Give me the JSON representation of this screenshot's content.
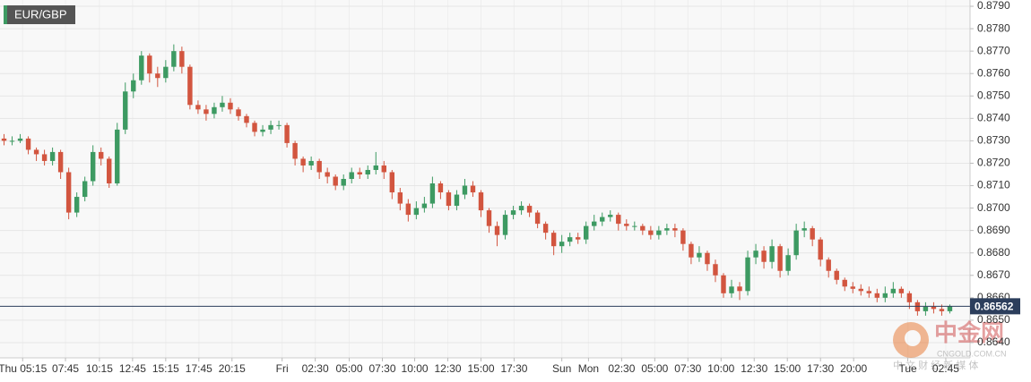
{
  "chart_data": {
    "type": "candlestick",
    "symbol": "EUR/GBP",
    "up_color": "#3d9a62",
    "down_color": "#d2553f",
    "grid": true,
    "last_price": 0.86562,
    "last_price_color": "#2c3e5c",
    "xlim": [
      0,
      120
    ],
    "ylim": [
      0.86332,
      0.87928
    ],
    "yticks": [
      {
        "value": 0.864,
        "label": "0.8640"
      },
      {
        "value": 0.865,
        "label": "0.8650"
      },
      {
        "value": 0.866,
        "label": "0.8660"
      },
      {
        "value": 0.867,
        "label": "0.8670"
      },
      {
        "value": 0.868,
        "label": "0.8680"
      },
      {
        "value": 0.869,
        "label": "0.8690"
      },
      {
        "value": 0.87,
        "label": "0.8700"
      },
      {
        "value": 0.871,
        "label": "0.8710"
      },
      {
        "value": 0.872,
        "label": "0.8720"
      },
      {
        "value": 0.873,
        "label": "0.8730"
      },
      {
        "value": 0.874,
        "label": "0.8740"
      },
      {
        "value": 0.875,
        "label": "0.8750"
      },
      {
        "value": 0.876,
        "label": "0.8760"
      },
      {
        "value": 0.877,
        "label": "0.8770"
      },
      {
        "value": 0.878,
        "label": "0.8780"
      },
      {
        "value": 0.879,
        "label": "0.8790"
      }
    ],
    "xticks": [
      {
        "value": 2.8,
        "label": "Thu 05:15"
      },
      {
        "value": 8.1,
        "label": "07:45"
      },
      {
        "value": 12.3,
        "label": "10:15"
      },
      {
        "value": 16.4,
        "label": "12:45"
      },
      {
        "value": 20.5,
        "label": "15:15"
      },
      {
        "value": 24.6,
        "label": "17:45"
      },
      {
        "value": 28.7,
        "label": "20:15"
      },
      {
        "value": 34.9,
        "label": "Fri"
      },
      {
        "value": 39.0,
        "label": "02:30"
      },
      {
        "value": 43.2,
        "label": "05:00"
      },
      {
        "value": 47.3,
        "label": "07:30"
      },
      {
        "value": 51.3,
        "label": "10:00"
      },
      {
        "value": 55.4,
        "label": "12:30"
      },
      {
        "value": 59.5,
        "label": "15:00"
      },
      {
        "value": 63.6,
        "label": "17:30"
      },
      {
        "value": 69.5,
        "label": "Sun"
      },
      {
        "value": 72.8,
        "label": "Mon"
      },
      {
        "value": 76.9,
        "label": "02:30"
      },
      {
        "value": 81.0,
        "label": "05:00"
      },
      {
        "value": 85.1,
        "label": "07:30"
      },
      {
        "value": 89.2,
        "label": "10:00"
      },
      {
        "value": 93.3,
        "label": "12:30"
      },
      {
        "value": 97.4,
        "label": "15:00"
      },
      {
        "value": 101.5,
        "label": "17:30"
      },
      {
        "value": 105.6,
        "label": "20:00"
      },
      {
        "value": 112.3,
        "label": "Tue"
      },
      {
        "value": 117.0,
        "label": "02:45"
      }
    ],
    "open": [
      0.8731,
      0.873,
      0.873,
      0.8731,
      0.8726,
      0.8724,
      0.8721,
      0.8725,
      0.8716,
      0.8698,
      0.8705,
      0.8712,
      0.8725,
      0.8722,
      0.8711,
      0.8735,
      0.8752,
      0.8757,
      0.8768,
      0.876,
      0.8758,
      0.8763,
      0.877,
      0.8763,
      0.8746,
      0.8744,
      0.8742,
      0.8745,
      0.8747,
      0.8744,
      0.8741,
      0.8738,
      0.8734,
      0.8735,
      0.8737,
      0.8737,
      0.8729,
      0.8722,
      0.8719,
      0.8721,
      0.8716,
      0.8714,
      0.871,
      0.8713,
      0.8716,
      0.8715,
      0.8717,
      0.8719,
      0.8716,
      0.8707,
      0.8702,
      0.8697,
      0.87,
      0.8702,
      0.8711,
      0.8707,
      0.8701,
      0.8706,
      0.871,
      0.8707,
      0.8699,
      0.8692,
      0.8688,
      0.8697,
      0.8699,
      0.8701,
      0.8698,
      0.8693,
      0.8689,
      0.8683,
      0.8685,
      0.8687,
      0.8686,
      0.8692,
      0.8694,
      0.8696,
      0.8697,
      0.8693,
      0.8692,
      0.8692,
      0.869,
      0.8688,
      0.869,
      0.8691,
      0.869,
      0.8684,
      0.8678,
      0.868,
      0.8675,
      0.867,
      0.8662,
      0.8665,
      0.8663,
      0.8678,
      0.8681,
      0.8676,
      0.8683,
      0.8672,
      0.8679,
      0.869,
      0.8691,
      0.8686,
      0.8677,
      0.8672,
      0.8668,
      0.8665,
      0.8664,
      0.8663,
      0.8662,
      0.866,
      0.8662,
      0.8664,
      0.8662,
      0.8658,
      0.8654,
      0.8656,
      0.8655,
      0.8654
    ],
    "high": [
      0.8733,
      0.8732,
      0.8733,
      0.8732,
      0.8727,
      0.8726,
      0.8727,
      0.8726,
      0.8718,
      0.8707,
      0.8714,
      0.8728,
      0.8727,
      0.8723,
      0.8738,
      0.8756,
      0.876,
      0.877,
      0.8769,
      0.8763,
      0.8766,
      0.8773,
      0.8772,
      0.8764,
      0.8748,
      0.8746,
      0.8747,
      0.875,
      0.8749,
      0.8745,
      0.8742,
      0.8739,
      0.8737,
      0.8739,
      0.8739,
      0.8738,
      0.873,
      0.8723,
      0.8723,
      0.8722,
      0.8718,
      0.8715,
      0.8715,
      0.8718,
      0.8718,
      0.8719,
      0.8725,
      0.8721,
      0.8717,
      0.8709,
      0.8704,
      0.8703,
      0.8705,
      0.8714,
      0.8712,
      0.8708,
      0.8708,
      0.8713,
      0.8712,
      0.8708,
      0.87,
      0.8694,
      0.8699,
      0.8701,
      0.8703,
      0.8702,
      0.8699,
      0.8694,
      0.869,
      0.8688,
      0.8689,
      0.8689,
      0.8694,
      0.8697,
      0.8698,
      0.8699,
      0.8698,
      0.8695,
      0.8694,
      0.8693,
      0.8692,
      0.8692,
      0.8693,
      0.8693,
      0.8691,
      0.8685,
      0.8683,
      0.8681,
      0.8677,
      0.8671,
      0.8668,
      0.8667,
      0.8681,
      0.8684,
      0.8683,
      0.8686,
      0.8684,
      0.8682,
      0.8693,
      0.8694,
      0.8692,
      0.8687,
      0.8678,
      0.8673,
      0.8669,
      0.8667,
      0.8666,
      0.8665,
      0.8664,
      0.8665,
      0.8667,
      0.8665,
      0.8663,
      0.8659,
      0.8658,
      0.8658,
      0.8657,
      0.8657
    ],
    "low": [
      0.8728,
      0.8728,
      0.8729,
      0.8724,
      0.8721,
      0.8719,
      0.8719,
      0.8713,
      0.8695,
      0.8696,
      0.8703,
      0.871,
      0.8719,
      0.8709,
      0.871,
      0.8733,
      0.8749,
      0.8755,
      0.8756,
      0.8754,
      0.8756,
      0.8761,
      0.876,
      0.8744,
      0.8742,
      0.8739,
      0.874,
      0.8743,
      0.8742,
      0.8739,
      0.8736,
      0.8732,
      0.8732,
      0.8733,
      0.8735,
      0.8727,
      0.8719,
      0.8716,
      0.8717,
      0.8713,
      0.8711,
      0.8708,
      0.8708,
      0.8711,
      0.8713,
      0.8713,
      0.8715,
      0.8713,
      0.8704,
      0.8699,
      0.8694,
      0.8695,
      0.8698,
      0.87,
      0.8704,
      0.8699,
      0.8699,
      0.8704,
      0.8705,
      0.8696,
      0.8689,
      0.8683,
      0.8686,
      0.8695,
      0.8697,
      0.8696,
      0.8691,
      0.8686,
      0.8679,
      0.868,
      0.8683,
      0.8684,
      0.8684,
      0.869,
      0.8692,
      0.8694,
      0.869,
      0.869,
      0.869,
      0.8688,
      0.8686,
      0.8686,
      0.8688,
      0.8687,
      0.8681,
      0.8675,
      0.8676,
      0.8672,
      0.8667,
      0.866,
      0.866,
      0.8659,
      0.8661,
      0.8675,
      0.8673,
      0.8673,
      0.8669,
      0.867,
      0.8677,
      0.8687,
      0.8683,
      0.8674,
      0.8669,
      0.8666,
      0.8663,
      0.8662,
      0.8661,
      0.866,
      0.8658,
      0.8658,
      0.866,
      0.866,
      0.8655,
      0.8652,
      0.8652,
      0.8653,
      0.8652,
      0.8653
    ],
    "close": [
      0.873,
      0.873,
      0.8731,
      0.8726,
      0.8724,
      0.8721,
      0.8725,
      0.8716,
      0.8698,
      0.8705,
      0.8712,
      0.8725,
      0.8722,
      0.8711,
      0.8735,
      0.8752,
      0.8757,
      0.8768,
      0.876,
      0.8758,
      0.8763,
      0.877,
      0.8763,
      0.8746,
      0.8744,
      0.8742,
      0.8745,
      0.8747,
      0.8744,
      0.8741,
      0.8738,
      0.8734,
      0.8735,
      0.8737,
      0.8737,
      0.8729,
      0.8722,
      0.8719,
      0.8721,
      0.8716,
      0.8714,
      0.871,
      0.8713,
      0.8716,
      0.8715,
      0.8717,
      0.8719,
      0.8716,
      0.8707,
      0.8702,
      0.8697,
      0.87,
      0.8702,
      0.8711,
      0.8707,
      0.8701,
      0.8706,
      0.871,
      0.8707,
      0.8699,
      0.8692,
      0.8688,
      0.8697,
      0.8699,
      0.8701,
      0.8698,
      0.8693,
      0.8689,
      0.8683,
      0.8685,
      0.8687,
      0.8686,
      0.8692,
      0.8694,
      0.8696,
      0.8697,
      0.8693,
      0.8692,
      0.8692,
      0.869,
      0.8688,
      0.869,
      0.8691,
      0.869,
      0.8684,
      0.8678,
      0.868,
      0.8675,
      0.867,
      0.8662,
      0.8665,
      0.8663,
      0.8678,
      0.8681,
      0.8676,
      0.8683,
      0.8672,
      0.8679,
      0.869,
      0.8691,
      0.8686,
      0.8677,
      0.8672,
      0.8668,
      0.8665,
      0.8664,
      0.8663,
      0.8662,
      0.866,
      0.8662,
      0.8664,
      0.8662,
      0.8658,
      0.8654,
      0.8656,
      0.8655,
      0.8654,
      0.86562
    ]
  },
  "watermark": {
    "brand": "中金网",
    "site": "CNGOLD.COM.CN",
    "slogan": "中 文 财 经 新 媒 体"
  }
}
